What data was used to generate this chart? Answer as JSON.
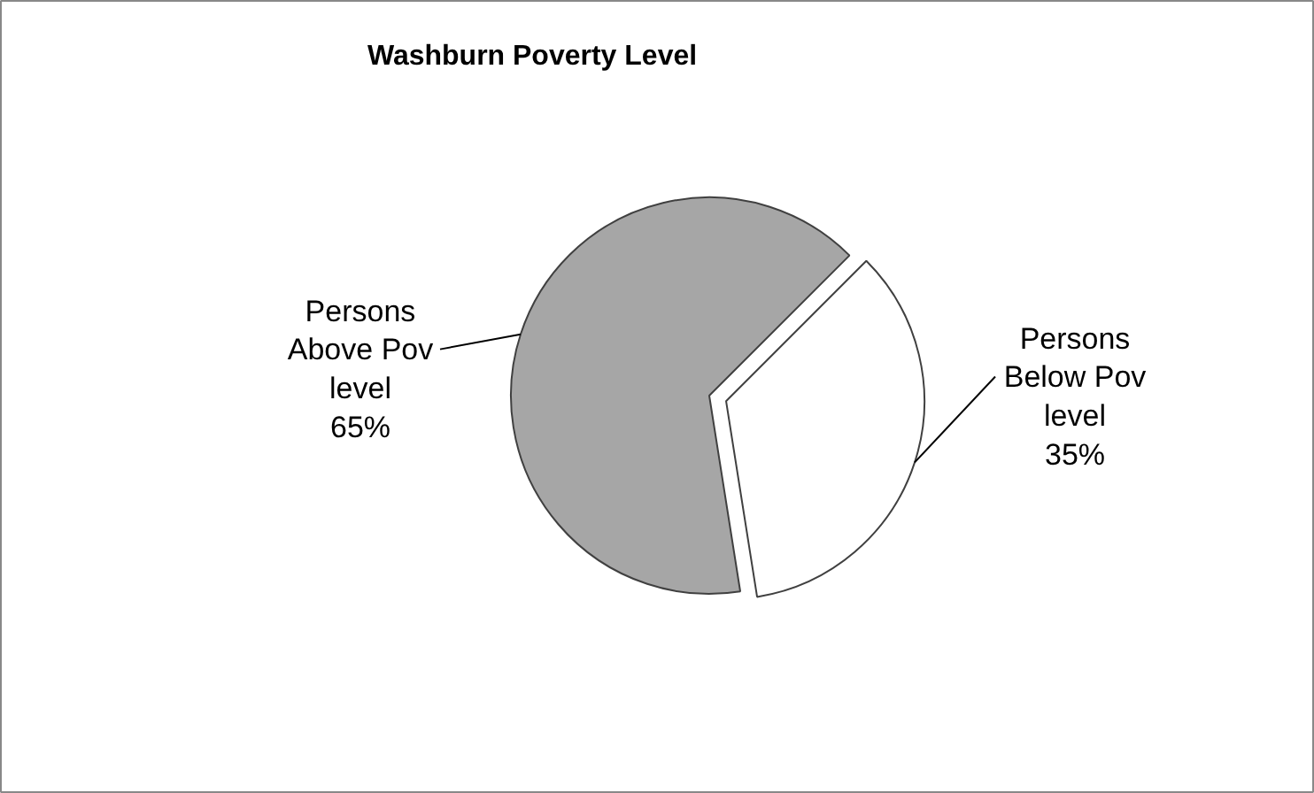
{
  "chart_data": {
    "type": "pie",
    "title": "Washburn Poverty Level",
    "categories": [
      "Persons Above Pov level",
      "Persons Below Pov level"
    ],
    "values": [
      65,
      35
    ],
    "colors": [
      "#a6a6a6",
      "#ffffff"
    ],
    "value_labels": [
      "65%",
      "35%"
    ]
  }
}
